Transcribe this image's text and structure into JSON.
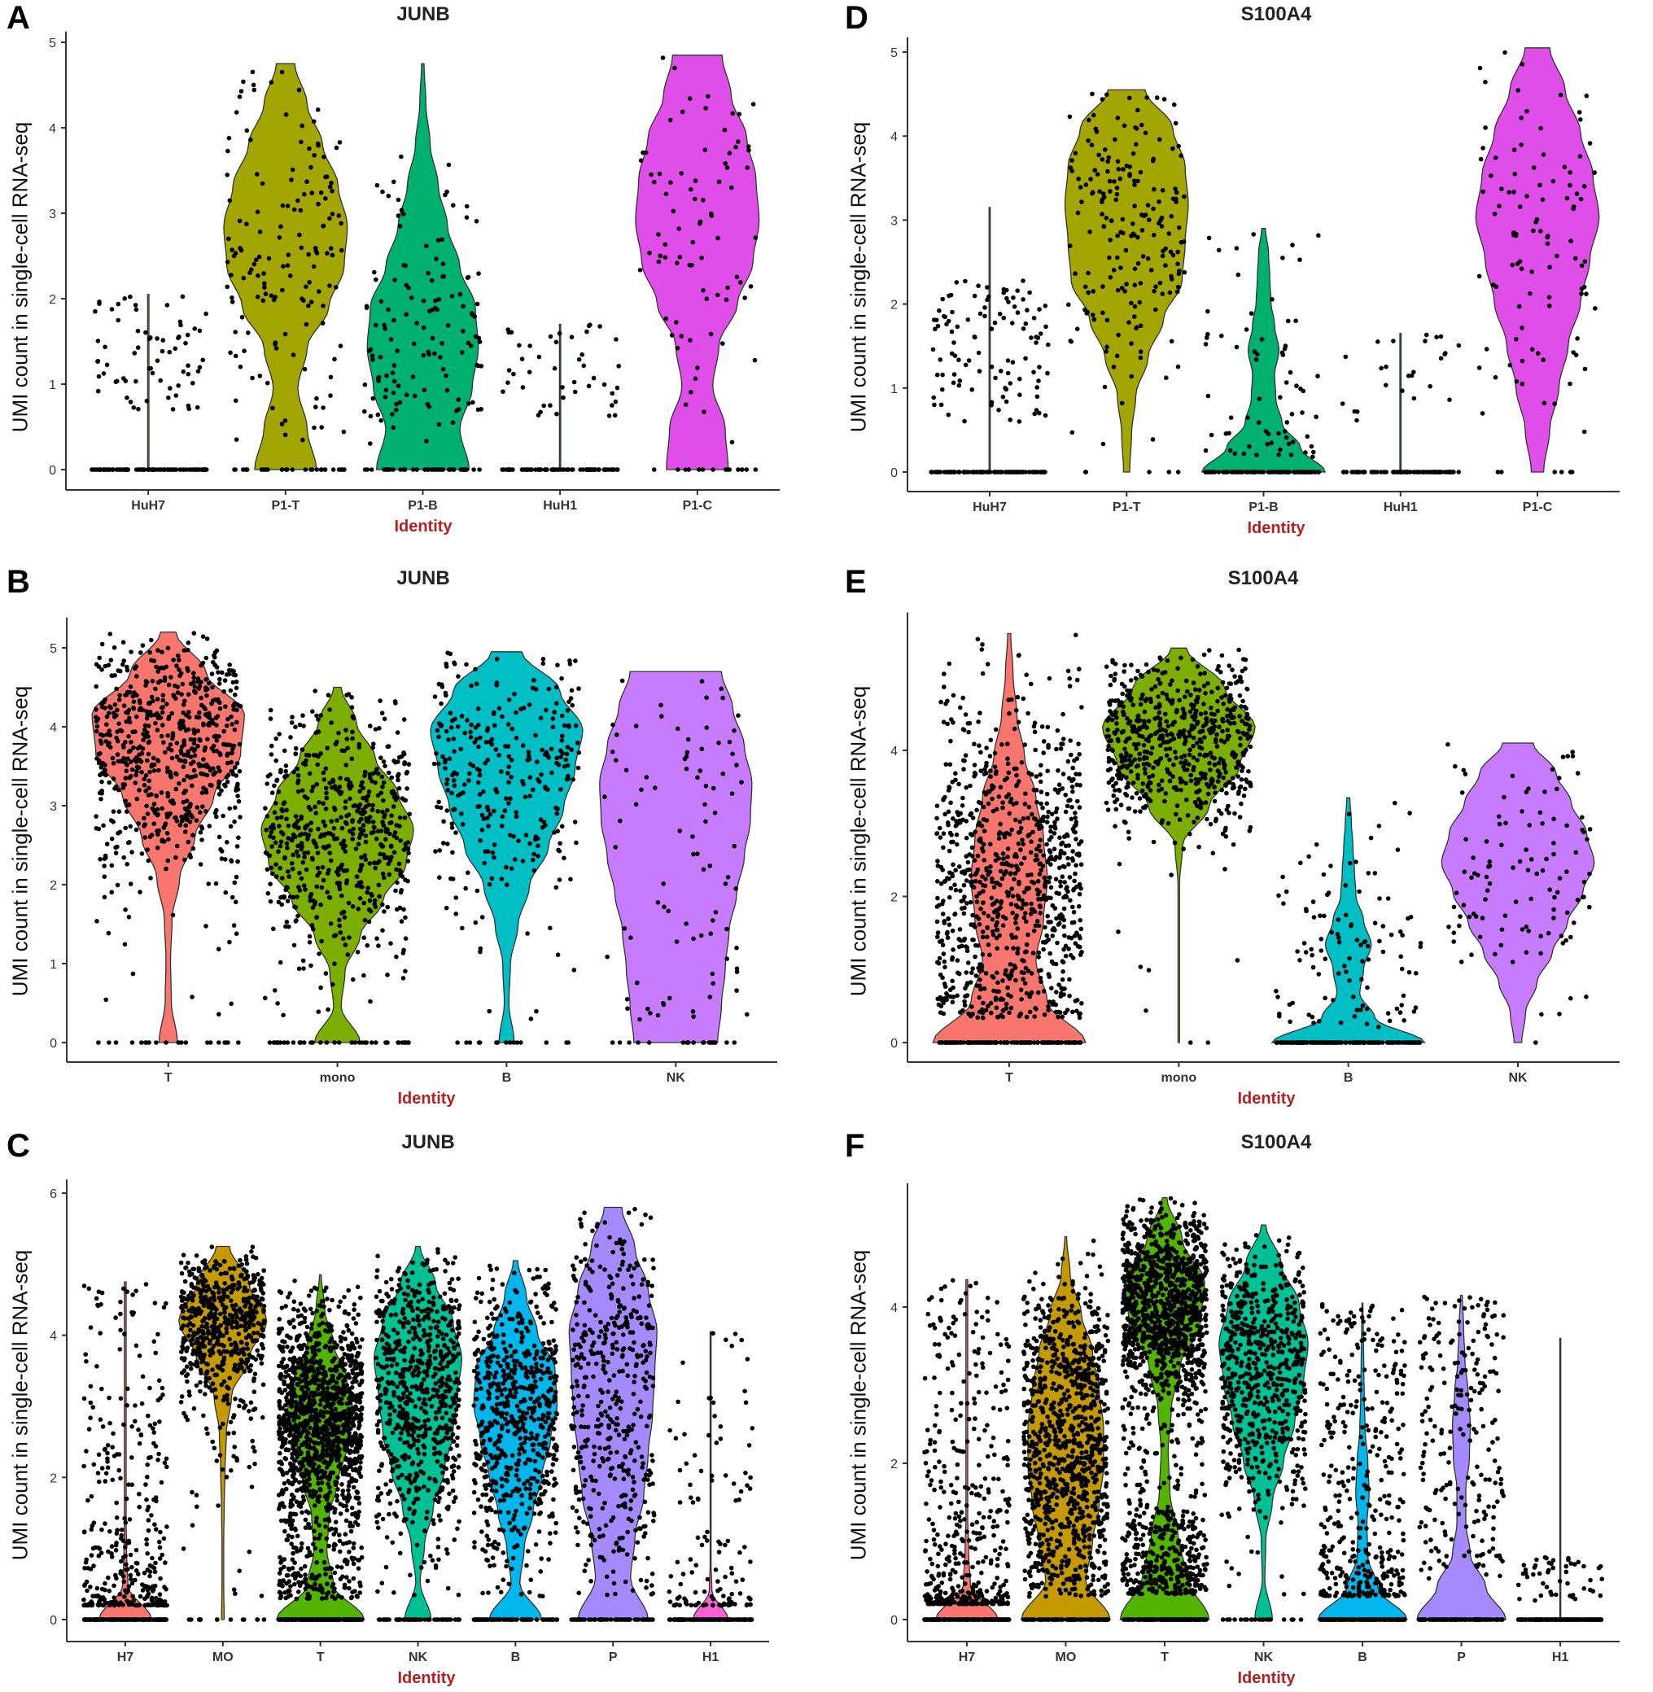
{
  "chart_data": [
    {
      "panel": "A",
      "type": "violin",
      "title": "JUNB",
      "xlabel": "Identity",
      "ylabel": "UMI count in single-cell RNA-seq",
      "ylim": [
        0,
        5.05
      ],
      "yticks": [
        0,
        1,
        2,
        3,
        4,
        5
      ],
      "categories": [
        "HuH7",
        "P1-T",
        "P1-B",
        "HuH1",
        "P1-C"
      ],
      "violins": [
        {
          "name": "HuH7",
          "color": "#F8766D",
          "max": 2.05,
          "density": [
            0.01,
            0.01,
            0.01,
            0.01,
            0.01,
            0.01,
            0.01,
            0.01,
            0.01,
            0.01,
            0.01
          ],
          "n_points": 70,
          "n_zero": 90,
          "point_range": [
            0.7,
            2.05
          ]
        },
        {
          "name": "P1-T",
          "color": "#A3A500",
          "max": 4.75,
          "density": [
            0.5,
            0.35,
            0.2,
            0.35,
            0.7,
            0.95,
            1.0,
            0.85,
            0.6,
            0.35,
            0.15
          ],
          "n_points": 150,
          "n_zero": 30
        },
        {
          "name": "P1-B",
          "color": "#00B06F",
          "max": 4.75,
          "density": [
            0.75,
            0.6,
            0.8,
            0.9,
            0.85,
            0.6,
            0.4,
            0.25,
            0.12,
            0.05,
            0.02
          ],
          "n_points": 130,
          "n_zero": 40
        },
        {
          "name": "HuH1",
          "color": "#00B0F6",
          "max": 1.7,
          "density": [
            0.01,
            0.01,
            0.01,
            0.01,
            0.01,
            0.01,
            0.01,
            0.01,
            0.01,
            0.01,
            0.01
          ],
          "n_points": 45,
          "n_zero": 80,
          "point_range": [
            0.55,
            1.7
          ]
        },
        {
          "name": "P1-C",
          "color": "#E04EEA",
          "max": 4.85,
          "density": [
            0.5,
            0.45,
            0.25,
            0.35,
            0.65,
            0.9,
            1.0,
            0.95,
            0.8,
            0.55,
            0.4
          ],
          "n_points": 80,
          "n_zero": 15
        }
      ]
    },
    {
      "panel": "B",
      "type": "violin",
      "title": "JUNB",
      "xlabel": "Identity",
      "ylabel": "UMI count in single-cell RNA-seq",
      "ylim": [
        0,
        5.3
      ],
      "yticks": [
        0,
        1,
        2,
        3,
        4,
        5
      ],
      "categories": [
        "T",
        "mono",
        "B",
        "NK"
      ],
      "violins": [
        {
          "name": "T",
          "color": "#F8766D",
          "max": 5.2,
          "density": [
            0.12,
            0.04,
            0.03,
            0.05,
            0.15,
            0.35,
            0.6,
            0.95,
            1.0,
            0.5,
            0.1
          ],
          "n_points": 700,
          "n_zero": 20
        },
        {
          "name": "mono",
          "color": "#7CAE00",
          "max": 4.5,
          "density": [
            0.3,
            0.05,
            0.1,
            0.3,
            0.6,
            0.9,
            1.0,
            0.8,
            0.5,
            0.25,
            0.05
          ],
          "n_points": 600,
          "n_zero": 40
        },
        {
          "name": "B",
          "color": "#00BFC4",
          "max": 4.95,
          "density": [
            0.1,
            0.03,
            0.05,
            0.15,
            0.3,
            0.55,
            0.75,
            0.9,
            1.0,
            0.7,
            0.2
          ],
          "n_points": 300,
          "n_zero": 15
        },
        {
          "name": "NK",
          "color": "#C77CFF",
          "max": 4.7,
          "density": [
            0.55,
            0.6,
            0.65,
            0.7,
            0.8,
            0.9,
            0.98,
            1.0,
            0.9,
            0.75,
            0.6
          ],
          "n_points": 90,
          "n_zero": 20
        }
      ]
    },
    {
      "panel": "C",
      "type": "violin",
      "title": "JUNB",
      "xlabel": "Identity",
      "ylabel": "UMI count in single-cell RNA-seq",
      "ylim": [
        0,
        6.1
      ],
      "yticks": [
        0,
        2,
        4,
        6
      ],
      "categories": [
        "H7",
        "MO",
        "T",
        "NK",
        "B",
        "P",
        "H1"
      ],
      "violins": [
        {
          "name": "H7",
          "color": "#F8766D",
          "max": 4.75,
          "density": [
            0.6,
            0.06,
            0.03,
            0.02,
            0.02,
            0.02,
            0.02,
            0.02,
            0.02,
            0.02,
            0.02
          ],
          "n_points": 350,
          "n_zero": 150,
          "point_range": [
            0.2,
            4.75
          ],
          "point_bias": 3
        },
        {
          "name": "MO",
          "color": "#C49A00",
          "max": 5.25,
          "density": [
            0.03,
            0.02,
            0.02,
            0.03,
            0.05,
            0.08,
            0.2,
            0.6,
            1.0,
            0.6,
            0.15
          ],
          "n_points": 600,
          "n_zero": 15
        },
        {
          "name": "T",
          "color": "#53B400",
          "max": 4.85,
          "density": [
            1.0,
            0.3,
            0.15,
            0.2,
            0.4,
            0.6,
            0.75,
            0.6,
            0.3,
            0.1,
            0.02
          ],
          "n_points": 1400,
          "n_zero": 200
        },
        {
          "name": "NK",
          "color": "#00C094",
          "max": 5.25,
          "density": [
            0.3,
            0.05,
            0.15,
            0.35,
            0.6,
            0.8,
            0.9,
            1.0,
            0.8,
            0.4,
            0.05
          ],
          "n_points": 700,
          "n_zero": 60
        },
        {
          "name": "B",
          "color": "#00B6EB",
          "max": 5.05,
          "density": [
            0.6,
            0.1,
            0.2,
            0.4,
            0.6,
            0.8,
            0.95,
            0.9,
            0.5,
            0.25,
            0.05
          ],
          "n_points": 650,
          "n_zero": 80
        },
        {
          "name": "P",
          "color": "#A58AFF",
          "max": 5.8,
          "density": [
            0.8,
            0.4,
            0.5,
            0.7,
            0.8,
            0.9,
            0.95,
            1.0,
            0.8,
            0.5,
            0.2
          ],
          "n_points": 450,
          "n_zero": 60
        },
        {
          "name": "H1",
          "color": "#FB61D7",
          "max": 4.05,
          "density": [
            0.4,
            0.03,
            0.01,
            0.01,
            0.01,
            0.01,
            0.01,
            0.01,
            0.01,
            0.01,
            0.01
          ],
          "n_points": 120,
          "n_zero": 120,
          "point_range": [
            0.2,
            4.05
          ],
          "point_bias": 3
        }
      ]
    },
    {
      "panel": "D",
      "type": "violin",
      "title": "S100A4",
      "xlabel": "Identity",
      "ylabel": "UMI count in single-cell RNA-seq",
      "ylim": [
        0,
        5.1
      ],
      "yticks": [
        0,
        1,
        2,
        3,
        4,
        5
      ],
      "categories": [
        "HuH7",
        "P1-T",
        "P1-B",
        "HuH1",
        "P1-C"
      ],
      "violins": [
        {
          "name": "HuH7",
          "color": "#F8766D",
          "max": 3.15,
          "density": [
            0.01,
            0.01,
            0.01,
            0.01,
            0.01,
            0.01,
            0.01,
            0.01,
            0.01,
            0.01,
            0.01
          ],
          "n_points": 110,
          "n_zero": 100,
          "point_range": [
            0.6,
            2.3
          ]
        },
        {
          "name": "P1-T",
          "color": "#A3A500",
          "max": 4.55,
          "density": [
            0.05,
            0.08,
            0.15,
            0.35,
            0.6,
            0.9,
            0.95,
            1.0,
            0.95,
            0.75,
            0.3
          ],
          "n_points": 200,
          "n_zero": 5
        },
        {
          "name": "P1-B",
          "color": "#00B06F",
          "max": 2.9,
          "density": [
            1.0,
            0.6,
            0.3,
            0.2,
            0.18,
            0.25,
            0.18,
            0.12,
            0.1,
            0.08,
            0.03
          ],
          "n_points": 70,
          "n_zero": 100
        },
        {
          "name": "HuH1",
          "color": "#00B0F6",
          "max": 1.65,
          "density": [
            0.01,
            0.01,
            0.01,
            0.01,
            0.01,
            0.01,
            0.01,
            0.01,
            0.01,
            0.01,
            0.01
          ],
          "n_points": 25,
          "n_zero": 90,
          "point_range": [
            0.6,
            1.65
          ]
        },
        {
          "name": "P1-C",
          "color": "#E04EEA",
          "max": 5.05,
          "density": [
            0.1,
            0.2,
            0.35,
            0.5,
            0.7,
            0.85,
            1.0,
            0.9,
            0.7,
            0.45,
            0.2
          ],
          "n_points": 100,
          "n_zero": 6
        }
      ]
    },
    {
      "panel": "E",
      "type": "violin",
      "title": "S100A4",
      "xlabel": "Identity",
      "ylabel": "UMI count in single-cell RNA-seq",
      "ylim": [
        0,
        5.8
      ],
      "yticks": [
        0,
        2,
        4
      ],
      "categories": [
        "T",
        "mono",
        "B",
        "NK"
      ],
      "violins": [
        {
          "name": "T",
          "color": "#F8766D",
          "max": 5.6,
          "density": [
            1.0,
            0.5,
            0.35,
            0.45,
            0.5,
            0.45,
            0.35,
            0.2,
            0.1,
            0.05,
            0.02
          ],
          "n_points": 900,
          "n_zero": 120
        },
        {
          "name": "mono",
          "color": "#7CAE00",
          "max": 5.4,
          "density": [
            0.01,
            0.01,
            0.01,
            0.01,
            0.01,
            0.05,
            0.4,
            0.8,
            1.0,
            0.6,
            0.1
          ],
          "n_points": 650,
          "n_zero": 2
        },
        {
          "name": "B",
          "color": "#00BFC4",
          "max": 3.35,
          "density": [
            1.0,
            0.35,
            0.15,
            0.2,
            0.3,
            0.2,
            0.1,
            0.08,
            0.06,
            0.04,
            0.02
          ],
          "n_points": 110,
          "n_zero": 150
        },
        {
          "name": "NK",
          "color": "#C77CFF",
          "max": 4.1,
          "density": [
            0.05,
            0.1,
            0.25,
            0.45,
            0.65,
            0.85,
            1.0,
            0.9,
            0.7,
            0.5,
            0.2
          ],
          "n_points": 110,
          "n_zero": 1
        }
      ]
    },
    {
      "panel": "F",
      "type": "violin",
      "title": "S100A4",
      "xlabel": "Identity",
      "ylabel": "UMI count in single-cell RNA-seq",
      "ylim": [
        0,
        5.5
      ],
      "yticks": [
        0,
        2,
        4
      ],
      "categories": [
        "H7",
        "MO",
        "T",
        "NK",
        "B",
        "P",
        "H1"
      ],
      "violins": [
        {
          "name": "H7",
          "color": "#F8766D",
          "max": 4.35,
          "density": [
            0.7,
            0.08,
            0.04,
            0.02,
            0.02,
            0.02,
            0.02,
            0.02,
            0.02,
            0.02,
            0.02
          ],
          "n_points": 450,
          "n_zero": 150,
          "point_range": [
            0.2,
            4.35
          ],
          "point_bias": 3
        },
        {
          "name": "MO",
          "color": "#C49A00",
          "max": 4.9,
          "density": [
            1.0,
            0.45,
            0.6,
            0.75,
            0.85,
            0.85,
            0.75,
            0.6,
            0.35,
            0.1,
            0.02
          ],
          "n_points": 1000,
          "n_zero": 100
        },
        {
          "name": "T",
          "color": "#53B400",
          "max": 5.4,
          "density": [
            1.0,
            0.5,
            0.3,
            0.12,
            0.08,
            0.15,
            0.35,
            0.8,
            0.9,
            0.4,
            0.05
          ],
          "n_points": 1500,
          "n_zero": 150
        },
        {
          "name": "NK",
          "color": "#00C094",
          "max": 5.05,
          "density": [
            0.2,
            0.03,
            0.05,
            0.2,
            0.45,
            0.7,
            0.9,
            1.0,
            0.8,
            0.4,
            0.05
          ],
          "n_points": 650,
          "n_zero": 20
        },
        {
          "name": "B",
          "color": "#00B6EB",
          "max": 4.05,
          "density": [
            1.0,
            0.35,
            0.12,
            0.1,
            0.15,
            0.12,
            0.06,
            0.04,
            0.03,
            0.02,
            0.01
          ],
          "n_points": 380,
          "n_zero": 150,
          "point_range": [
            0.3,
            4.05
          ],
          "point_bias": 2
        },
        {
          "name": "P",
          "color": "#A58AFF",
          "max": 4.15,
          "density": [
            1.0,
            0.55,
            0.2,
            0.1,
            0.1,
            0.18,
            0.2,
            0.15,
            0.08,
            0.05,
            0.02
          ],
          "n_points": 220,
          "n_zero": 120,
          "point_range": [
            0.5,
            4.15
          ]
        },
        {
          "name": "H1",
          "color": "#FB61D7",
          "max": 3.6,
          "density": [
            0.01,
            0.01,
            0.01,
            0.01,
            0.01,
            0.01,
            0.01,
            0.01,
            0.01,
            0.01,
            0.01
          ],
          "n_points": 50,
          "n_zero": 150,
          "point_range": [
            0.2,
            0.8
          ]
        }
      ]
    }
  ]
}
